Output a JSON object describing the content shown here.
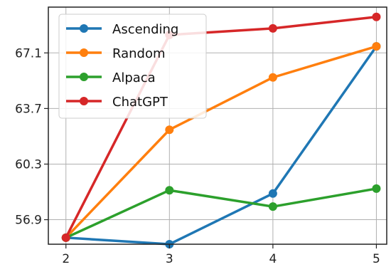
{
  "chart_data": {
    "type": "line",
    "title": "",
    "xlabel": "",
    "ylabel": "",
    "x": [
      2,
      3,
      4,
      5
    ],
    "xlim": [
      1.83,
      5.1
    ],
    "ylim": [
      55.4,
      69.9
    ],
    "yticks": [
      "56.9",
      "60.3",
      "63.7",
      "67.1"
    ],
    "xticks": [
      "2",
      "3",
      "4",
      "5"
    ],
    "grid": true,
    "legend_position": "top-left",
    "series": [
      {
        "name": "Ascending",
        "color": "#1f77b4",
        "values": [
          55.8,
          55.4,
          58.5,
          67.5
        ]
      },
      {
        "name": "Random",
        "color": "#ff7f0e",
        "values": [
          55.8,
          62.4,
          65.6,
          67.5
        ]
      },
      {
        "name": "Alpaca",
        "color": "#2ca02c",
        "values": [
          55.8,
          58.7,
          57.7,
          58.8
        ]
      },
      {
        "name": "ChatGPT",
        "color": "#d62728",
        "values": [
          55.8,
          68.2,
          68.6,
          69.3
        ]
      }
    ]
  }
}
